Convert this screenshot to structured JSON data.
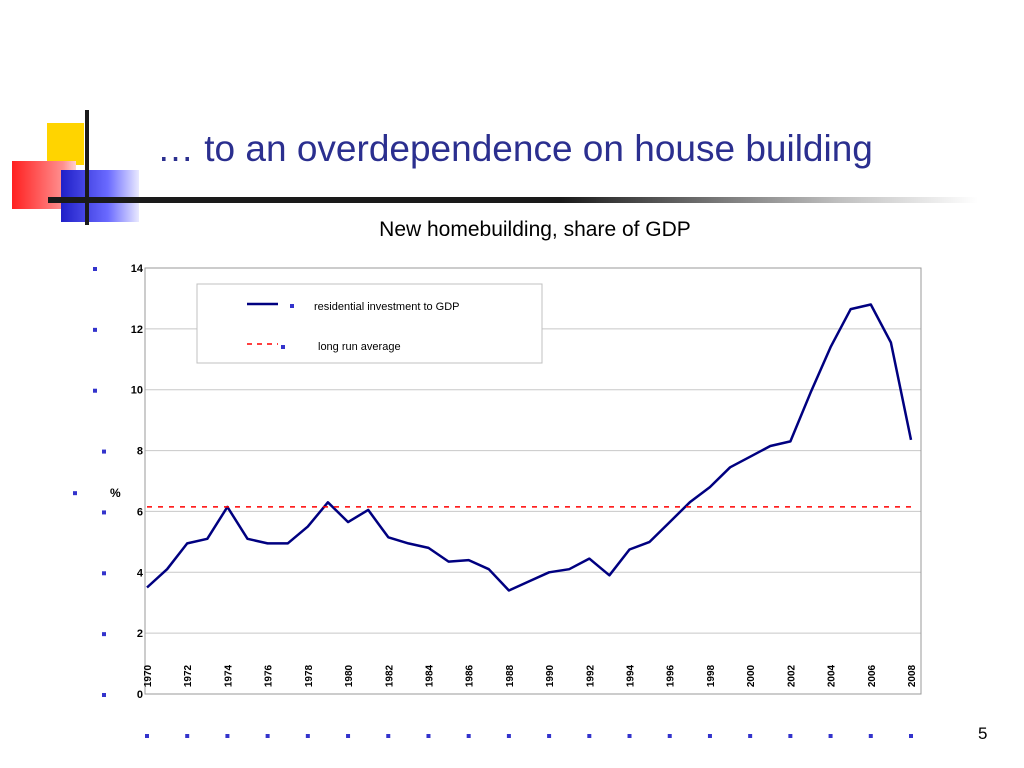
{
  "slide": {
    "title": "… to an overdependence on house building",
    "page_number": "5"
  },
  "chart_data": {
    "type": "line",
    "title": "New homebuilding, share of GDP",
    "xlabel": "",
    "ylabel": "%",
    "ylim": [
      0,
      14
    ],
    "yticks": [
      0,
      2,
      4,
      6,
      8,
      10,
      12,
      14
    ],
    "ytick_labels": [
      "0",
      "2",
      "4",
      "6",
      "8",
      "10",
      "12",
      "14"
    ],
    "xlim": [
      1970,
      2008
    ],
    "xtick_labels": [
      "1970",
      "1972",
      "1974",
      "1976",
      "1978",
      "1980",
      "1982",
      "1984",
      "1986",
      "1988",
      "1990",
      "1992",
      "1994",
      "1996",
      "1998",
      "2000",
      "2002",
      "2004",
      "2006",
      "2008"
    ],
    "grid": true,
    "legend_position": "top-left",
    "series": [
      {
        "name": "residential investment to GDP",
        "color": "#000080",
        "style": "solid",
        "x": [
          1970,
          1971,
          1972,
          1973,
          1974,
          1975,
          1976,
          1977,
          1978,
          1979,
          1980,
          1981,
          1982,
          1983,
          1984,
          1985,
          1986,
          1987,
          1988,
          1989,
          1990,
          1991,
          1992,
          1993,
          1994,
          1995,
          1996,
          1997,
          1998,
          1999,
          2000,
          2001,
          2002,
          2003,
          2004,
          2005,
          2006,
          2007,
          2008
        ],
        "values": [
          3.5,
          4.1,
          4.95,
          5.1,
          6.15,
          5.1,
          4.95,
          4.95,
          5.5,
          6.3,
          5.65,
          6.05,
          5.15,
          4.95,
          4.8,
          4.35,
          4.4,
          4.1,
          3.4,
          3.7,
          4.0,
          4.1,
          4.45,
          3.9,
          4.75,
          5.0,
          5.65,
          6.3,
          6.8,
          7.45,
          7.8,
          8.15,
          8.3,
          9.9,
          11.4,
          12.65,
          12.8,
          11.55,
          8.35
        ]
      },
      {
        "name": "long run average",
        "color": "#ff0000",
        "style": "dashed",
        "x": [
          1970,
          2008
        ],
        "values": [
          6.15,
          6.15
        ]
      }
    ]
  }
}
